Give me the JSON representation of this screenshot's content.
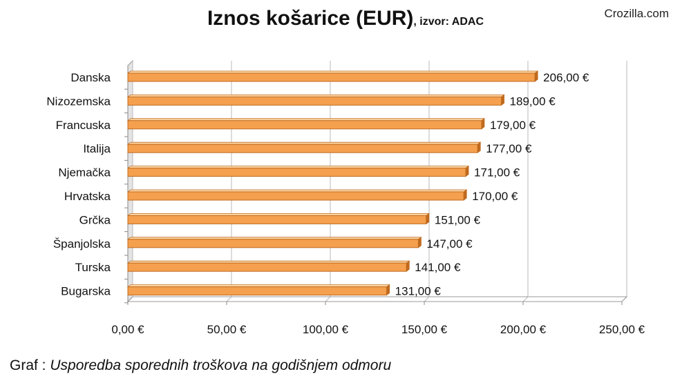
{
  "header": {
    "title_main": "Iznos košarice (EUR)",
    "title_sub": ", izvor: ADAC",
    "watermark": "Crozilla.com"
  },
  "caption": {
    "prefix": "Graf : ",
    "text": "Usporedba sporednih troškova na godišnjem odmoru"
  },
  "colors": {
    "bar": "#f4a04e",
    "bar_dark": "#c06a1e",
    "bar_light": "#ffd9a8",
    "grid": "#b8b8b8",
    "wall": "#e4e4e4"
  },
  "chart_data": {
    "type": "bar",
    "orientation": "horizontal",
    "categories": [
      "Danska",
      "Nizozemska",
      "Francuska",
      "Italija",
      "Njemačka",
      "Hrvatska",
      "Grčka",
      "Španjolska",
      "Turska",
      "Bugarska"
    ],
    "values": [
      206,
      189,
      179,
      177,
      171,
      170,
      151,
      147,
      141,
      131
    ],
    "value_labels": [
      "206,00 €",
      "189,00 €",
      "179,00 €",
      "177,00 €",
      "171,00 €",
      "170,00 €",
      "151,00 €",
      "147,00 €",
      "141,00 €",
      "131,00 €"
    ],
    "xlim": [
      0,
      250
    ],
    "ticks": [
      0,
      50,
      100,
      150,
      200,
      250
    ],
    "tick_labels": [
      "0,00 €",
      "50,00 €",
      "100,00 €",
      "150,00 €",
      "200,00 €",
      "250,00 €"
    ],
    "grid": true,
    "legend": "none"
  }
}
